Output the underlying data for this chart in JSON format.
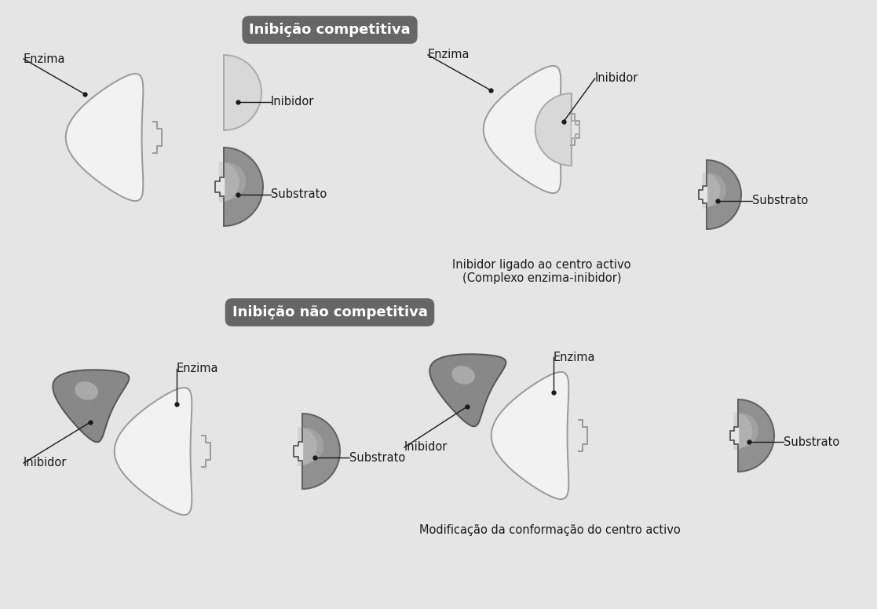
{
  "bg_color": "#e5e5e5",
  "title_competitive": "Inibição competitiva",
  "title_noncompetitive": "Inibição não competitiva",
  "title_bg": "#666666",
  "title_fg": "#ffffff",
  "enzyme_color": "#f2f2f2",
  "enzyme_outline": "#999999",
  "inhibitor_light_fill": "#d8d8d8",
  "inhibitor_light_outline": "#aaaaaa",
  "substrate_dark_fill": "#909090",
  "substrate_dark_outline": "#606060",
  "text_color": "#1a1a1a",
  "label_fontsize": 10.5,
  "caption1": "Inibidor ligado ao centro activo\n(Complexo enzima-inibidor)",
  "caption2": "Modificação da conformação do centro activo",
  "nc_inhibitor_fill": "#888888",
  "nc_inhibitor_outline": "#555555",
  "nc_inhibitor_highlight": "#bbbbbb"
}
